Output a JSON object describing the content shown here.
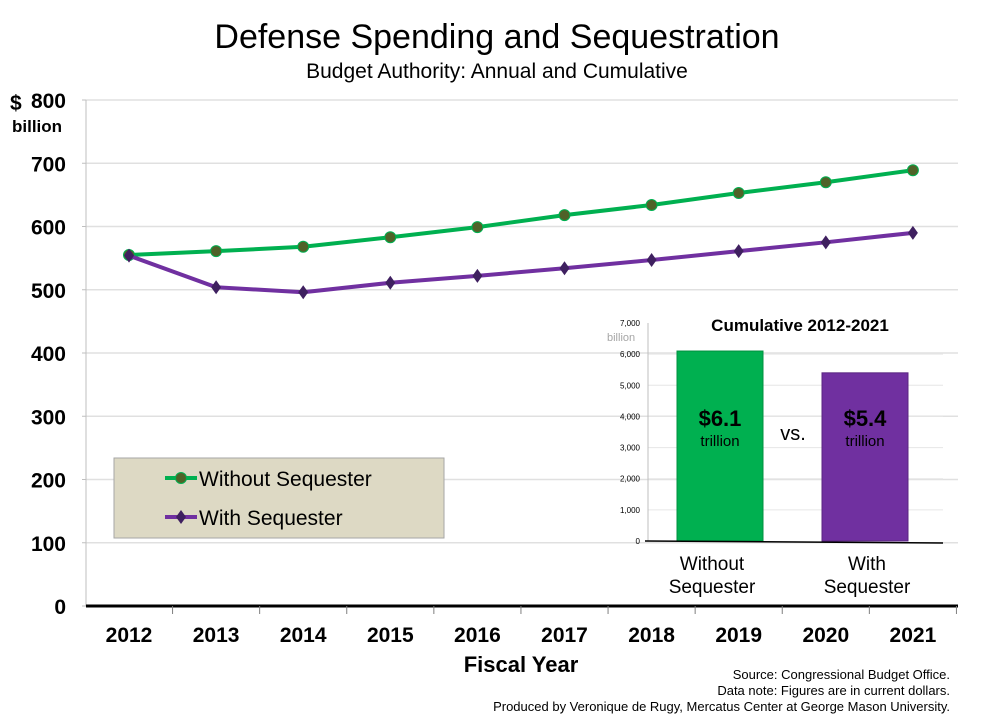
{
  "chart_data": [
    {
      "type": "line",
      "title": "Defense Spending and Sequestration",
      "subtitle": "Budget Authority: Annual and Cumulative",
      "xlabel": "Fiscal Year",
      "ylabel_unit_top": "$",
      "ylabel_unit_bottom": "billion",
      "ylim": [
        0,
        800
      ],
      "yticks": [
        "0",
        "100",
        "200",
        "300",
        "400",
        "500",
        "600",
        "700",
        "800"
      ],
      "categories": [
        "2012",
        "2013",
        "2014",
        "2015",
        "2016",
        "2017",
        "2018",
        "2019",
        "2020",
        "2021"
      ],
      "grid": true,
      "legend_placement": "bottom-left",
      "series": [
        {
          "name": "Without Sequester",
          "color": "#00b050",
          "marker_color": "#4f6228",
          "marker": "circle",
          "values": [
            555,
            561,
            568,
            583,
            599,
            618,
            634,
            653,
            670,
            689
          ]
        },
        {
          "name": "With Sequester",
          "color": "#7030a0",
          "marker_color": "#3f2060",
          "marker": "diamond",
          "values": [
            554,
            504,
            496,
            511,
            522,
            534,
            547,
            561,
            575,
            590
          ]
        }
      ]
    },
    {
      "type": "bar",
      "title": "Cumulative 2012-2021",
      "ylabel": "billion",
      "ylim": [
        0,
        7000
      ],
      "yticks": [
        "0",
        "1,000",
        "2,000",
        "3,000",
        "4,000",
        "5,000",
        "6,000",
        "7,000"
      ],
      "categories": [
        "Without Sequester",
        "With Sequester"
      ],
      "category_lines": [
        [
          "Without",
          "Sequester"
        ],
        [
          "With",
          "Sequester"
        ]
      ],
      "values": [
        6100,
        5400
      ],
      "colors": [
        "#00b050",
        "#7030a0"
      ],
      "data_labels": [
        {
          "amount": "$6.1",
          "unit": "trillion"
        },
        {
          "amount": "$5.4",
          "unit": "trillion"
        }
      ],
      "separator": "vs."
    }
  ],
  "notes": [
    "Source: Congressional Budget Office.",
    "Data note: Figures are in current dollars.",
    "Produced by Veronique de Rugy, Mercatus Center at George Mason University."
  ]
}
